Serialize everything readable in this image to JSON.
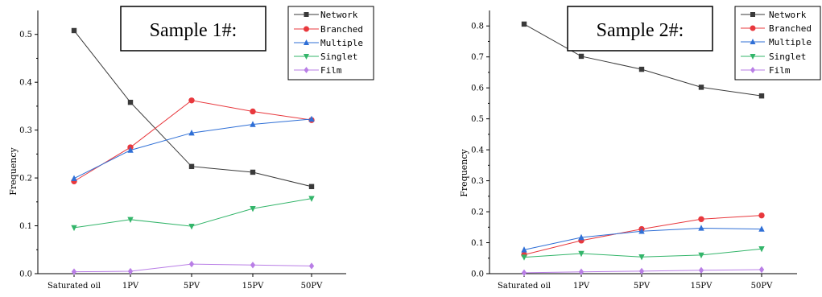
{
  "chart_data": [
    {
      "type": "line",
      "title": "Sample 1#:",
      "xlabel": "",
      "ylabel": "Frequency",
      "categories": [
        "Saturated oil",
        "1PV",
        "5PV",
        "15PV",
        "50PV"
      ],
      "ylim": [
        0,
        0.55
      ],
      "yticks": [
        0.0,
        0.1,
        0.2,
        0.3,
        0.4,
        0.5
      ],
      "ytick_labels": [
        "0.0",
        "0.1",
        "0.2",
        "0.3",
        "0.4",
        "0.5"
      ],
      "legend_position": "top-right",
      "grid": false,
      "series": [
        {
          "name": "Network",
          "color": "#3a3a3a",
          "marker": "square",
          "values": [
            0.508,
            0.358,
            0.224,
            0.212,
            0.182
          ]
        },
        {
          "name": "Branched",
          "color": "#e8383d",
          "marker": "circle",
          "values": [
            0.193,
            0.264,
            0.362,
            0.339,
            0.321
          ]
        },
        {
          "name": "Multiple",
          "color": "#2f6fd6",
          "marker": "triangle-up",
          "values": [
            0.199,
            0.258,
            0.294,
            0.312,
            0.323
          ]
        },
        {
          "name": "Singlet",
          "color": "#33b56a",
          "marker": "triangle-down",
          "values": [
            0.096,
            0.113,
            0.099,
            0.136,
            0.157
          ]
        },
        {
          "name": "Film",
          "color": "#b97ee6",
          "marker": "diamond",
          "values": [
            0.004,
            0.005,
            0.02,
            0.018,
            0.016
          ]
        }
      ]
    },
    {
      "type": "line",
      "title": "Sample 2#:",
      "xlabel": "",
      "ylabel": "Frequency",
      "categories": [
        "Saturated oil",
        "1PV",
        "5PV",
        "15PV",
        "50PV"
      ],
      "ylim": [
        0,
        0.85
      ],
      "yticks": [
        0.0,
        0.1,
        0.2,
        0.3,
        0.4,
        0.5,
        0.6,
        0.7,
        0.8
      ],
      "ytick_labels": [
        "0.0",
        "0.1",
        "0.2",
        "0.3",
        "0.4",
        "0.5",
        "0.6",
        "0.7",
        "0.8"
      ],
      "legend_position": "top-right",
      "grid": false,
      "series": [
        {
          "name": "Network",
          "color": "#3a3a3a",
          "marker": "square",
          "values": [
            0.806,
            0.702,
            0.66,
            0.602,
            0.574
          ]
        },
        {
          "name": "Branched",
          "color": "#e8383d",
          "marker": "circle",
          "values": [
            0.061,
            0.107,
            0.144,
            0.176,
            0.188
          ]
        },
        {
          "name": "Multiple",
          "color": "#2f6fd6",
          "marker": "triangle-up",
          "values": [
            0.077,
            0.117,
            0.137,
            0.147,
            0.144
          ]
        },
        {
          "name": "Singlet",
          "color": "#33b56a",
          "marker": "triangle-down",
          "values": [
            0.053,
            0.065,
            0.054,
            0.06,
            0.08
          ]
        },
        {
          "name": "Film",
          "color": "#b97ee6",
          "marker": "diamond",
          "values": [
            0.003,
            0.006,
            0.008,
            0.011,
            0.013
          ]
        }
      ]
    }
  ]
}
